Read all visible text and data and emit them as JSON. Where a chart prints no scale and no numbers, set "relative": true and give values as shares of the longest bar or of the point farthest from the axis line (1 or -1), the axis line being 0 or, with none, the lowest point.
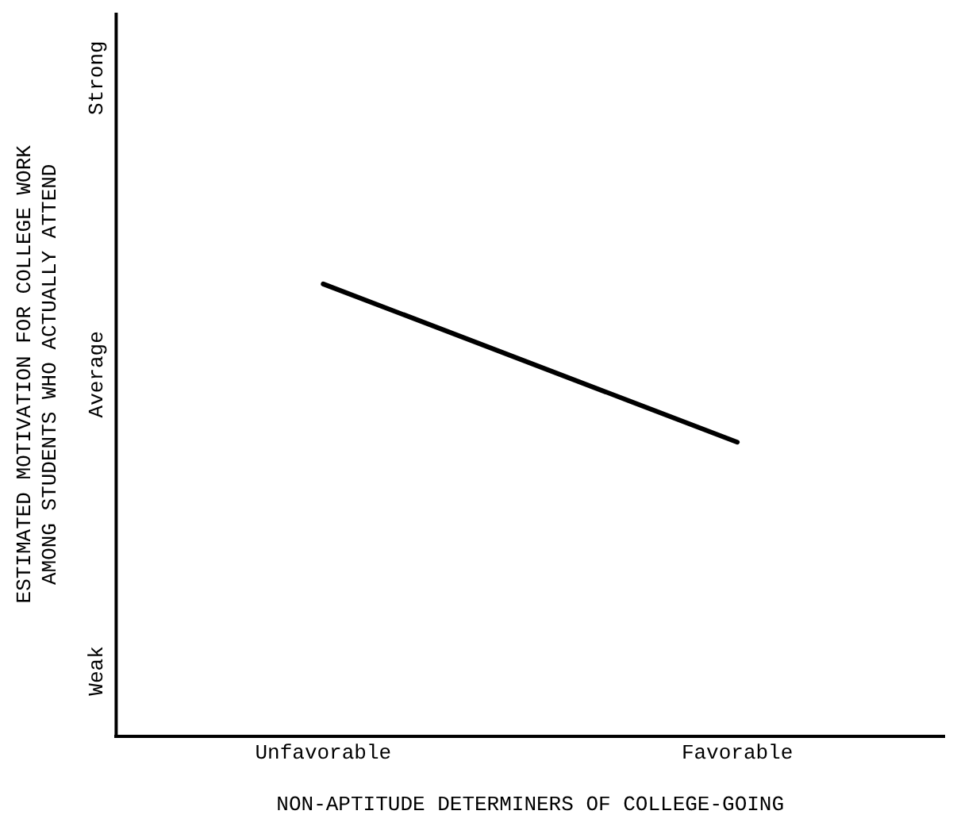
{
  "chart_data": {
    "type": "line",
    "relative": true,
    "xlabel": "NON-APTITUDE DETERMINERS OF COLLEGE-GOING",
    "ylabel": "ESTIMATED MOTIVATION FOR COLLEGE WORK\nAMONG STUDENTS WHO ACTUALLY ATTEND",
    "categories": [
      "Unfavorable",
      "Favorable"
    ],
    "annotations": [
      "Weak",
      "Average",
      "Strong"
    ],
    "series": [
      {
        "color": "#000000",
        "values": [
          1,
          0.65
        ]
      }
    ],
    "grid": false,
    "legend": false,
    "marker": "none",
    "line_style": "solid"
  }
}
